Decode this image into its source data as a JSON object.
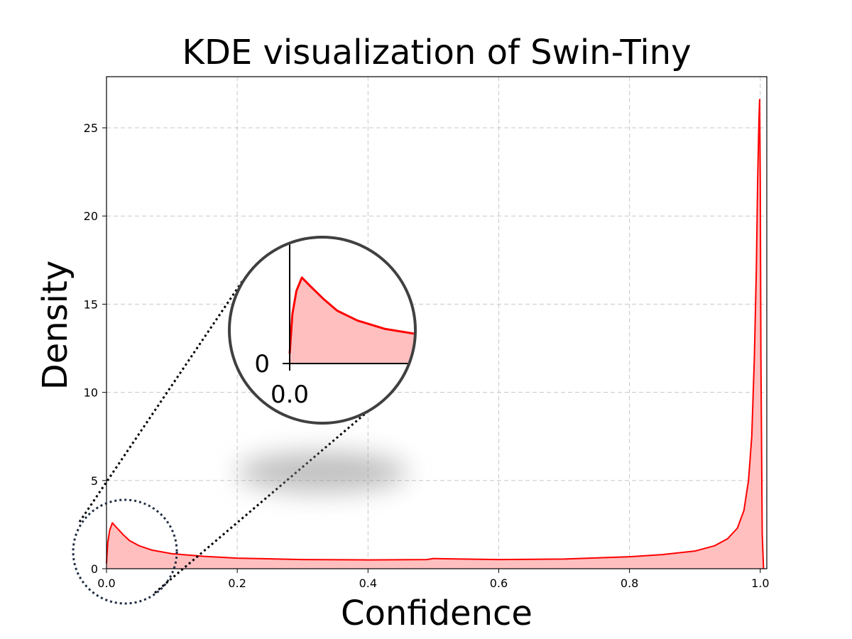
{
  "colors": {
    "line": "#ff0000",
    "fill": "#ffbfbf",
    "grid": "#c8c8c8",
    "zoom_circle_edge": "#404040",
    "dotted_circle": "#1f2d44",
    "connector": "#000000"
  },
  "chart_data": {
    "type": "area",
    "title": "KDE visualization of Swin-Tiny",
    "xlabel": "Confidence",
    "ylabel": "Density",
    "xlim": [
      0.0,
      1.01
    ],
    "ylim": [
      0,
      27.9
    ],
    "grid": true,
    "xticks": [
      0.0,
      0.2,
      0.4,
      0.6,
      0.8,
      1.0
    ],
    "xtick_labels": [
      "0.0",
      "0.2",
      "0.4",
      "0.6",
      "0.8",
      "1.0"
    ],
    "yticks": [
      0,
      5,
      10,
      15,
      20,
      25
    ],
    "ytick_labels": [
      "0",
      "5",
      "10",
      "15",
      "20",
      "25"
    ],
    "series": [
      {
        "name": "Swin-Tiny",
        "x": [
          0.0,
          0.002,
          0.005,
          0.009,
          0.015,
          0.025,
          0.035,
          0.05,
          0.07,
          0.1,
          0.15,
          0.2,
          0.3,
          0.4,
          0.49,
          0.5,
          0.51,
          0.6,
          0.7,
          0.8,
          0.85,
          0.9,
          0.93,
          0.95,
          0.965,
          0.975,
          0.982,
          0.987,
          0.991,
          0.994,
          0.996,
          0.998,
          0.999,
          1.0,
          1.001,
          1.003,
          1.005
        ],
        "y": [
          0.3,
          1.5,
          2.2,
          2.6,
          2.35,
          1.95,
          1.6,
          1.3,
          1.05,
          0.85,
          0.7,
          0.6,
          0.52,
          0.5,
          0.52,
          0.58,
          0.57,
          0.52,
          0.55,
          0.68,
          0.8,
          1.0,
          1.3,
          1.7,
          2.3,
          3.3,
          5.0,
          7.5,
          12.0,
          17.0,
          22.0,
          25.5,
          26.6,
          22.0,
          12.0,
          2.0,
          0.0
        ]
      }
    ],
    "annotations": [
      {
        "kind": "zoom-inset",
        "region_x": [
          0.0,
          0.1
        ],
        "region_y": [
          0,
          3.8
        ],
        "inset_xtick_label": "0.0",
        "inset_ytick_label": "0"
      }
    ]
  }
}
